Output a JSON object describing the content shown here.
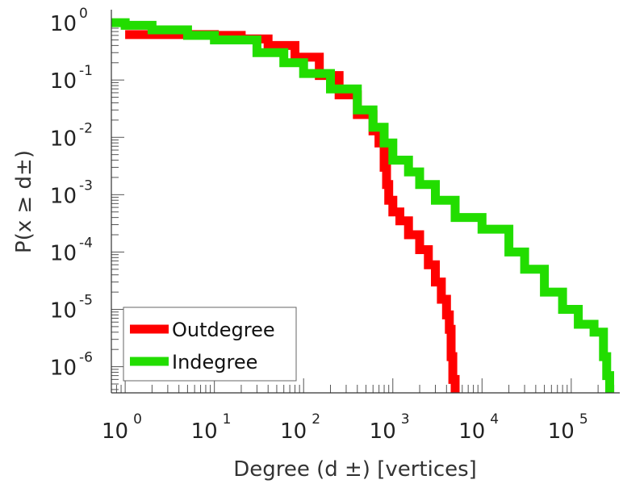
{
  "chart_data": {
    "type": "line",
    "xscale": "log",
    "yscale": "log",
    "xlim": [
      0.7,
      350000
    ],
    "ylim": [
      3.5e-07,
      1.3
    ],
    "xlabel": "Degree (d ±) [vertices]",
    "ylabel": "P(x ≥ d±)",
    "xticks": [
      {
        "base": "10",
        "exp": "0"
      },
      {
        "base": "10",
        "exp": "1"
      },
      {
        "base": "10",
        "exp": "2"
      },
      {
        "base": "10",
        "exp": "3"
      },
      {
        "base": "10",
        "exp": "4"
      },
      {
        "base": "10",
        "exp": "5"
      }
    ],
    "yticks": [
      {
        "base": "10",
        "exp": "0"
      },
      {
        "base": "10",
        "exp": "-1"
      },
      {
        "base": "10",
        "exp": "-2"
      },
      {
        "base": "10",
        "exp": "-3"
      },
      {
        "base": "10",
        "exp": "-4"
      },
      {
        "base": "10",
        "exp": "-5"
      },
      {
        "base": "10",
        "exp": "-6"
      }
    ],
    "legend_position": "bottom-left",
    "series": [
      {
        "name": "Outdegree",
        "color": "#ff0000",
        "x": [
          1,
          3,
          10,
          20,
          40,
          80,
          150,
          250,
          400,
          600,
          700,
          800,
          850,
          900,
          1000,
          1200,
          1500,
          2000,
          2500,
          3000,
          3500,
          4000,
          4300,
          4500,
          4700,
          5000
        ],
        "y": [
          0.62,
          0.62,
          0.6,
          0.52,
          0.4,
          0.25,
          0.12,
          0.055,
          0.025,
          0.013,
          0.008,
          0.003,
          0.0015,
          0.0008,
          0.0005,
          0.00035,
          0.0002,
          0.00011,
          6e-05,
          3e-05,
          1.5e-05,
          8e-06,
          4.5e-06,
          1.5e-06,
          6e-07,
          4e-07
        ]
      },
      {
        "name": "Indegree",
        "color": "#22dd00",
        "x": [
          0.7,
          1,
          2,
          5,
          10,
          30,
          60,
          100,
          200,
          400,
          600,
          800,
          1000,
          1500,
          2000,
          3000,
          5000,
          10000,
          20000,
          30000,
          50000,
          80000,
          120000,
          180000,
          230000,
          250000,
          270000
        ],
        "y": [
          1,
          0.9,
          0.75,
          0.6,
          0.5,
          0.3,
          0.2,
          0.13,
          0.07,
          0.03,
          0.015,
          0.008,
          0.004,
          0.0025,
          0.0015,
          0.0008,
          0.0004,
          0.00025,
          0.0001,
          5e-05,
          2e-05,
          1e-05,
          5.5e-06,
          4e-06,
          1.5e-06,
          7e-07,
          4e-07
        ]
      }
    ]
  }
}
